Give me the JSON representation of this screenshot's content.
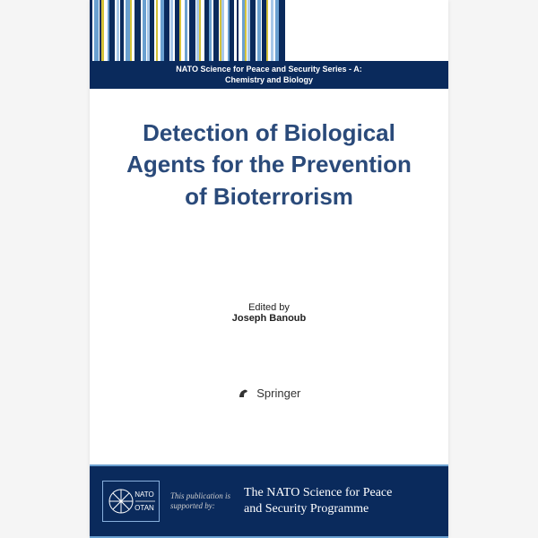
{
  "series": {
    "line1": "NATO Science for Peace and Security Series - A:",
    "line2": "Chemistry and Biology"
  },
  "title_lines": [
    "Detection of Biological",
    "Agents for the Prevention",
    "of Bioterrorism"
  ],
  "editor": {
    "label": "Edited by",
    "name": "Joseph Banoub"
  },
  "publisher": "Springer",
  "footer": {
    "nato_top": "NATO",
    "nato_bottom": "OTAN",
    "pub_line1": "This publication is",
    "pub_line2": "supported by:",
    "programme_line1": "The NATO Science for Peace",
    "programme_line2": "and Security Programme"
  },
  "barcode": {
    "colors": [
      "#0a2a5c",
      "#ffffff",
      "#6aa0d0",
      "#ffffff",
      "#0a2a5c",
      "#d4c23a",
      "#ffffff",
      "#6aa0d0",
      "#0a2a5c",
      "#ffffff",
      "#a8c8e8",
      "#ffffff",
      "#0a2a5c",
      "#ffffff",
      "#6aa0d0",
      "#d4c23a",
      "#ffffff",
      "#0a2a5c",
      "#ffffff",
      "#6aa0d0",
      "#ffffff",
      "#a8c8e8",
      "#0a2a5c",
      "#ffffff",
      "#d4c23a",
      "#ffffff",
      "#6aa0d0",
      "#0a2a5c",
      "#ffffff",
      "#a8c8e8",
      "#ffffff",
      "#0a2a5c",
      "#d4c23a",
      "#ffffff",
      "#6aa0d0",
      "#ffffff",
      "#0a2a5c",
      "#ffffff",
      "#a8c8e8",
      "#d4c23a",
      "#ffffff",
      "#0a2a5c",
      "#6aa0d0",
      "#ffffff",
      "#0a2a5c",
      "#ffffff",
      "#d4c23a",
      "#a8c8e8",
      "#ffffff",
      "#6aa0d0",
      "#0a2a5c",
      "#ffffff",
      "#0a2a5c",
      "#ffffff",
      "#6aa0d0",
      "#d4c23a",
      "#ffffff",
      "#a8c8e8",
      "#0a2a5c",
      "#ffffff",
      "#6aa0d0",
      "#ffffff",
      "#0a2a5c",
      "#d4c23a",
      "#ffffff",
      "#a8c8e8",
      "#ffffff",
      "#6aa0d0",
      "#0a2a5c",
      "#ffffff"
    ],
    "widths": [
      3,
      2,
      5,
      1,
      2,
      3,
      4,
      2,
      6,
      2,
      3,
      1,
      4,
      2,
      5,
      2,
      3,
      7,
      2,
      4,
      1,
      3,
      5,
      2,
      2,
      3,
      4,
      6,
      1,
      3,
      2,
      5,
      2,
      4,
      3,
      2,
      7,
      1,
      3,
      2,
      4,
      5,
      3,
      2,
      6,
      1,
      2,
      3,
      4,
      2,
      5,
      3,
      2,
      4,
      3,
      2,
      1,
      3,
      6,
      2,
      4,
      1,
      5,
      2,
      3,
      3,
      2,
      4,
      7,
      2
    ]
  },
  "colors": {
    "nato_blue": "#0a2a5c",
    "title_blue": "#2a4a7a",
    "light_blue": "#6aa0d0",
    "pale_blue": "#a8c8e8",
    "gold": "#d4c23a",
    "footer_grey": "#cccccc"
  }
}
